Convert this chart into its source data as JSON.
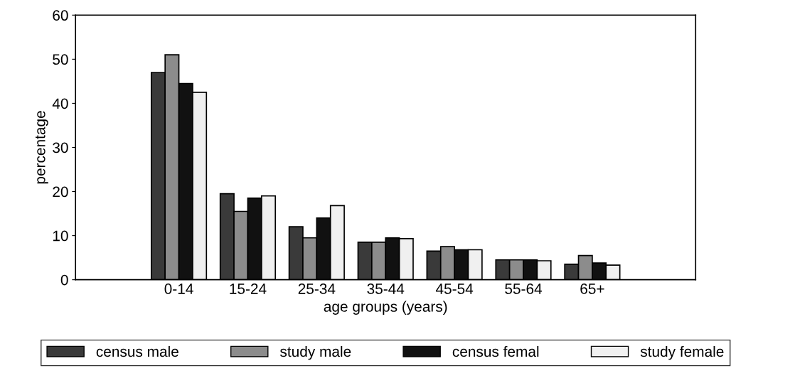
{
  "chart_data": {
    "type": "bar",
    "xlabel": "age groups (years)",
    "ylabel": "percentage",
    "categories": [
      "0-14",
      "15-24",
      "25-34",
      "35-44",
      "45-54",
      "55-64",
      "65+"
    ],
    "series": [
      {
        "name": "census male",
        "color": "#3a3a3a",
        "values": [
          47,
          19.5,
          12,
          8.5,
          6.5,
          4.5,
          3.5
        ]
      },
      {
        "name": "study male",
        "color": "#8c8c8c",
        "values": [
          51,
          15.5,
          9.5,
          8.5,
          7.5,
          4.5,
          5.5
        ]
      },
      {
        "name": "census femal",
        "color": "#111111",
        "values": [
          44.5,
          18.5,
          14,
          9.5,
          6.8,
          4.5,
          3.8
        ]
      },
      {
        "name": "study female",
        "color": "#f0f0f0",
        "values": [
          42.5,
          19,
          16.8,
          9.3,
          6.8,
          4.3,
          3.3
        ]
      }
    ],
    "ylim": [
      0,
      60
    ],
    "yticks": [
      0,
      10,
      20,
      30,
      40,
      50,
      60
    ],
    "grid": false,
    "legend": "bottom"
  }
}
